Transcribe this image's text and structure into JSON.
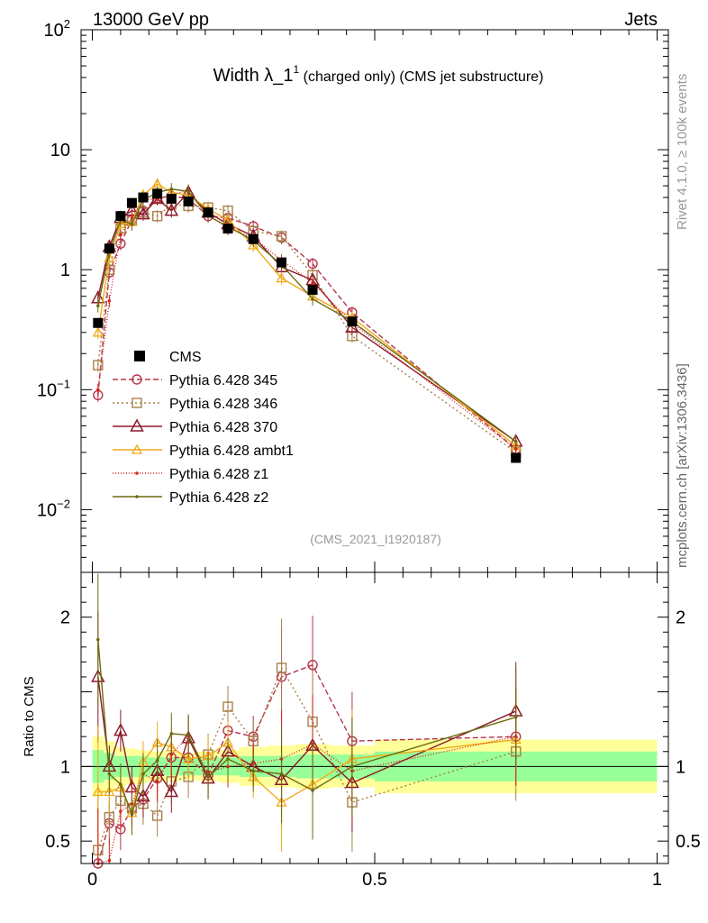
{
  "header": {
    "left": "13000 GeV pp",
    "right": "Jets"
  },
  "side": {
    "rivet": "Rivet 4.1.0, ≥ 100k events",
    "mcplots": "mcplots.cern.ch [arXiv:1306.3436]"
  },
  "plot": {
    "title_main": "Width λ_1",
    "title_sup": "1",
    "title_rest": " (charged only) (CMS jet substructure)",
    "analysis_id": "(CMS_2021_I1920187)",
    "ratio_ylabel": "Ratio to CMS"
  },
  "chart_data": {
    "type": "line",
    "x_range": [
      -0.02,
      1.02
    ],
    "main": {
      "yscale": "log",
      "ylim": [
        0.003,
        100
      ],
      "yticks": [
        {
          "value": 100,
          "base": "10",
          "exp": "2"
        },
        {
          "value": 10,
          "base": "10",
          "exp": ""
        },
        {
          "value": 1,
          "base": "1",
          "exp": ""
        },
        {
          "value": 0.1,
          "base": "10",
          "exp": "−1"
        },
        {
          "value": 0.01,
          "base": "10",
          "exp": "−2"
        }
      ]
    },
    "ratio": {
      "ylim": [
        0.35,
        2.3
      ],
      "yticks": [
        {
          "value": 2,
          "label": "2"
        },
        {
          "value": 1,
          "label": "1"
        },
        {
          "value": 0.5,
          "label": "0.5"
        }
      ]
    },
    "xticks": [
      {
        "value": 0,
        "label": "0"
      },
      {
        "value": 0.5,
        "label": "0.5"
      },
      {
        "value": 1,
        "label": "1"
      }
    ],
    "data_series": {
      "name": "CMS",
      "x": [
        0.01,
        0.03,
        0.05,
        0.07,
        0.09,
        0.115,
        0.14,
        0.17,
        0.205,
        0.24,
        0.285,
        0.335,
        0.39,
        0.46,
        0.75
      ],
      "y": [
        0.36,
        1.5,
        2.8,
        3.6,
        4.0,
        4.3,
        3.9,
        3.7,
        3.0,
        2.2,
        1.8,
        1.15,
        0.68,
        0.37,
        0.027
      ]
    },
    "series": [
      {
        "name": "Pythia 6.428 345",
        "color": "#b5354a",
        "dash": "6,3",
        "marker": "circle",
        "y": [
          0.09,
          0.95,
          1.65,
          2.6,
          3.1,
          3.95,
          4.1,
          3.9,
          2.8,
          2.7,
          2.3,
          1.85,
          1.12,
          0.44,
          0.032
        ],
        "ratio": [
          0.27,
          0.62,
          0.58,
          0.72,
          0.78,
          0.92,
          1.06,
          1.06,
          0.94,
          1.24,
          1.2,
          1.6,
          1.68,
          1.17,
          1.2
        ]
      },
      {
        "name": "Pythia 6.428 346",
        "color": "#a8804a",
        "dash": "2,3",
        "marker": "square",
        "y": [
          0.16,
          1.0,
          2.2,
          2.6,
          3.0,
          2.8,
          3.5,
          3.4,
          3.3,
          3.1,
          2.1,
          1.9,
          0.9,
          0.28,
          0.03
        ],
        "ratio": [
          0.44,
          0.66,
          0.77,
          0.72,
          0.75,
          0.67,
          0.9,
          0.93,
          1.08,
          1.4,
          1.17,
          1.66,
          1.3,
          0.76,
          1.1
        ]
      },
      {
        "name": "Pythia 6.428 370",
        "color": "#8b1a2a",
        "dash": "",
        "marker": "triangle",
        "y": [
          0.58,
          1.55,
          2.7,
          3.1,
          2.9,
          3.9,
          3.1,
          4.4,
          3.0,
          2.4,
          1.9,
          1.05,
          0.82,
          0.33,
          0.037
        ],
        "ratio": [
          1.6,
          1.0,
          1.24,
          0.86,
          0.8,
          0.97,
          0.83,
          1.19,
          0.92,
          1.1,
          1.0,
          0.91,
          1.14,
          0.89,
          1.37
        ]
      },
      {
        "name": "Pythia 6.428 ambt1",
        "color": "#f0a818",
        "dash": "",
        "marker": "triangle-small",
        "y": [
          0.3,
          1.25,
          2.4,
          2.5,
          4.2,
          5.2,
          4.4,
          4.2,
          3.2,
          2.6,
          1.6,
          0.85,
          0.6,
          0.4,
          0.034
        ],
        "ratio": [
          0.83,
          0.83,
          0.86,
          0.69,
          1.03,
          1.16,
          1.13,
          1.05,
          1.07,
          1.16,
          0.93,
          0.76,
          0.88,
          1.05,
          1.18
        ]
      },
      {
        "name": "Pythia 6.428 z1",
        "color": "#d4281c",
        "dash": "1,2",
        "marker": "dot",
        "y": [
          0.1,
          0.55,
          1.95,
          2.7,
          3.8,
          3.9,
          4.2,
          4.6,
          2.9,
          2.2,
          1.85,
          1.2,
          0.78,
          0.36,
          0.032
        ],
        "ratio": [
          0.28,
          0.37,
          0.7,
          0.75,
          0.95,
          0.9,
          1.08,
          1.2,
          0.96,
          1.0,
          1.02,
          1.05,
          1.15,
          0.97,
          1.2
        ]
      },
      {
        "name": "Pythia 6.428 z2",
        "color": "#6b6b10",
        "dash": "",
        "marker": "dot",
        "y": [
          0.5,
          1.4,
          2.6,
          2.4,
          3.8,
          4.4,
          4.7,
          4.5,
          2.8,
          2.3,
          1.75,
          1.1,
          0.57,
          0.37,
          0.037
        ],
        "ratio": [
          1.85,
          0.95,
          0.88,
          0.68,
          0.95,
          1.04,
          1.22,
          1.21,
          0.93,
          1.05,
          0.97,
          0.95,
          0.84,
          1.0,
          1.33
        ]
      }
    ],
    "uncertainty_bands": {
      "x_edges": [
        0.0,
        0.02,
        0.04,
        0.06,
        0.08,
        0.1,
        0.13,
        0.155,
        0.185,
        0.225,
        0.26,
        0.31,
        0.36,
        0.42,
        0.5,
        1.0
      ],
      "green_half": [
        0.11,
        0.09,
        0.07,
        0.07,
        0.07,
        0.06,
        0.06,
        0.06,
        0.06,
        0.06,
        0.07,
        0.07,
        0.08,
        0.08,
        0.1
      ],
      "yellow_half": [
        0.2,
        0.17,
        0.13,
        0.12,
        0.11,
        0.1,
        0.1,
        0.09,
        0.1,
        0.11,
        0.13,
        0.14,
        0.15,
        0.14,
        0.18
      ]
    }
  }
}
